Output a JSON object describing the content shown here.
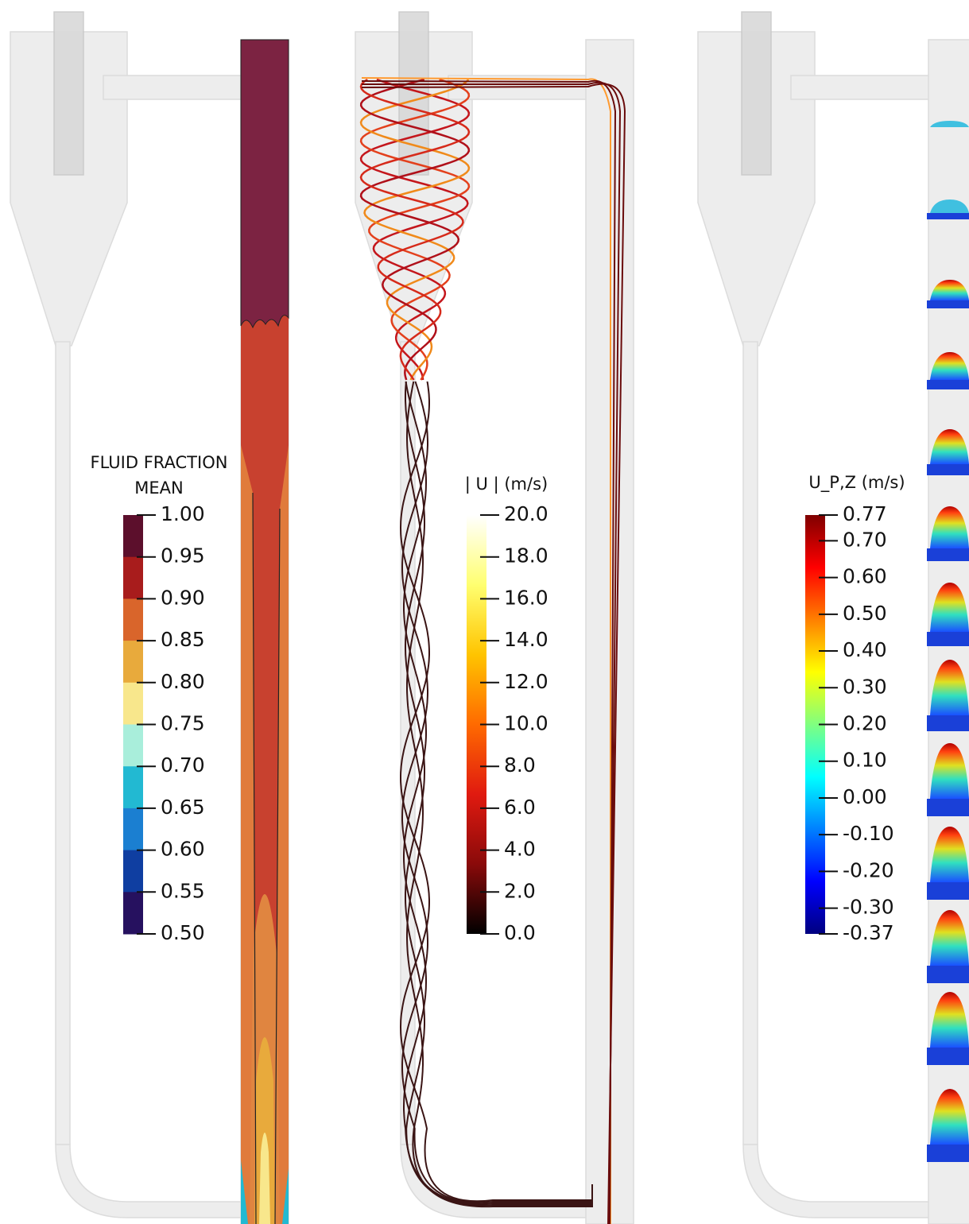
{
  "panels": [
    {
      "colorbar": {
        "title_lines": [
          "FLUID FRACTION",
          "MEAN"
        ],
        "discrete": true,
        "colors": [
          "#5c0f2c",
          "#a81c1c",
          "#d9652b",
          "#e8aa3c",
          "#f8e78c",
          "#a9eedb",
          "#22b9d2",
          "#1b7fd1",
          "#0f3ea1",
          "#26115f"
        ],
        "ticks": [
          {
            "value": 1,
            "label": "1.00"
          },
          {
            "value": 0.95,
            "label": "0.95"
          },
          {
            "value": 0.9,
            "label": "0.90"
          },
          {
            "value": 0.85,
            "label": "0.85"
          },
          {
            "value": 0.8,
            "label": "0.80"
          },
          {
            "value": 0.75,
            "label": "0.75"
          },
          {
            "value": 0.7,
            "label": "0.70"
          },
          {
            "value": 0.65,
            "label": "0.65"
          },
          {
            "value": 0.6,
            "label": "0.60"
          },
          {
            "value": 0.55,
            "label": "0.55"
          },
          {
            "value": 0.5,
            "label": "0.50"
          }
        ]
      }
    },
    {
      "colorbar": {
        "title_lines": [
          "| U | (m/s)"
        ],
        "discrete": false,
        "colors": [
          "#ffffff",
          "#ffff70",
          "#ffc400",
          "#ff6a00",
          "#e01a10",
          "#8a0a0a",
          "#000000"
        ],
        "ticks": [
          {
            "value": 20,
            "label": "20.0"
          },
          {
            "value": 18,
            "label": "18.0"
          },
          {
            "value": 16,
            "label": "16.0"
          },
          {
            "value": 14,
            "label": "14.0"
          },
          {
            "value": 12,
            "label": "12.0"
          },
          {
            "value": 10,
            "label": "10.0"
          },
          {
            "value": 8,
            "label": "8.0"
          },
          {
            "value": 6,
            "label": "6.0"
          },
          {
            "value": 4,
            "label": "4.0"
          },
          {
            "value": 2,
            "label": "2.0"
          },
          {
            "value": 0,
            "label": "0.0"
          }
        ]
      }
    },
    {
      "colorbar": {
        "title_lines": [
          "U_P,Z (m/s)"
        ],
        "discrete": false,
        "colors": [
          "#7f0000",
          "#ff0000",
          "#ff8000",
          "#ffff00",
          "#80ff80",
          "#00ffff",
          "#0080ff",
          "#0000ff",
          "#00007f"
        ],
        "ticks": [
          {
            "value": 0.77,
            "label": "0.77"
          },
          {
            "value": 0.7,
            "label": "0.70"
          },
          {
            "value": 0.6,
            "label": "0.60"
          },
          {
            "value": 0.5,
            "label": "0.50"
          },
          {
            "value": 0.4,
            "label": "0.40"
          },
          {
            "value": 0.3,
            "label": "0.30"
          },
          {
            "value": 0.2,
            "label": "0.20"
          },
          {
            "value": 0.1,
            "label": "0.10"
          },
          {
            "value": 0,
            "label": "0.00"
          },
          {
            "value": -0.1,
            "label": "-0.10"
          },
          {
            "value": -0.2,
            "label": "-0.20"
          },
          {
            "value": -0.3,
            "label": "-0.30"
          },
          {
            "value": -0.37,
            "label": "-0.37"
          }
        ]
      }
    }
  ]
}
